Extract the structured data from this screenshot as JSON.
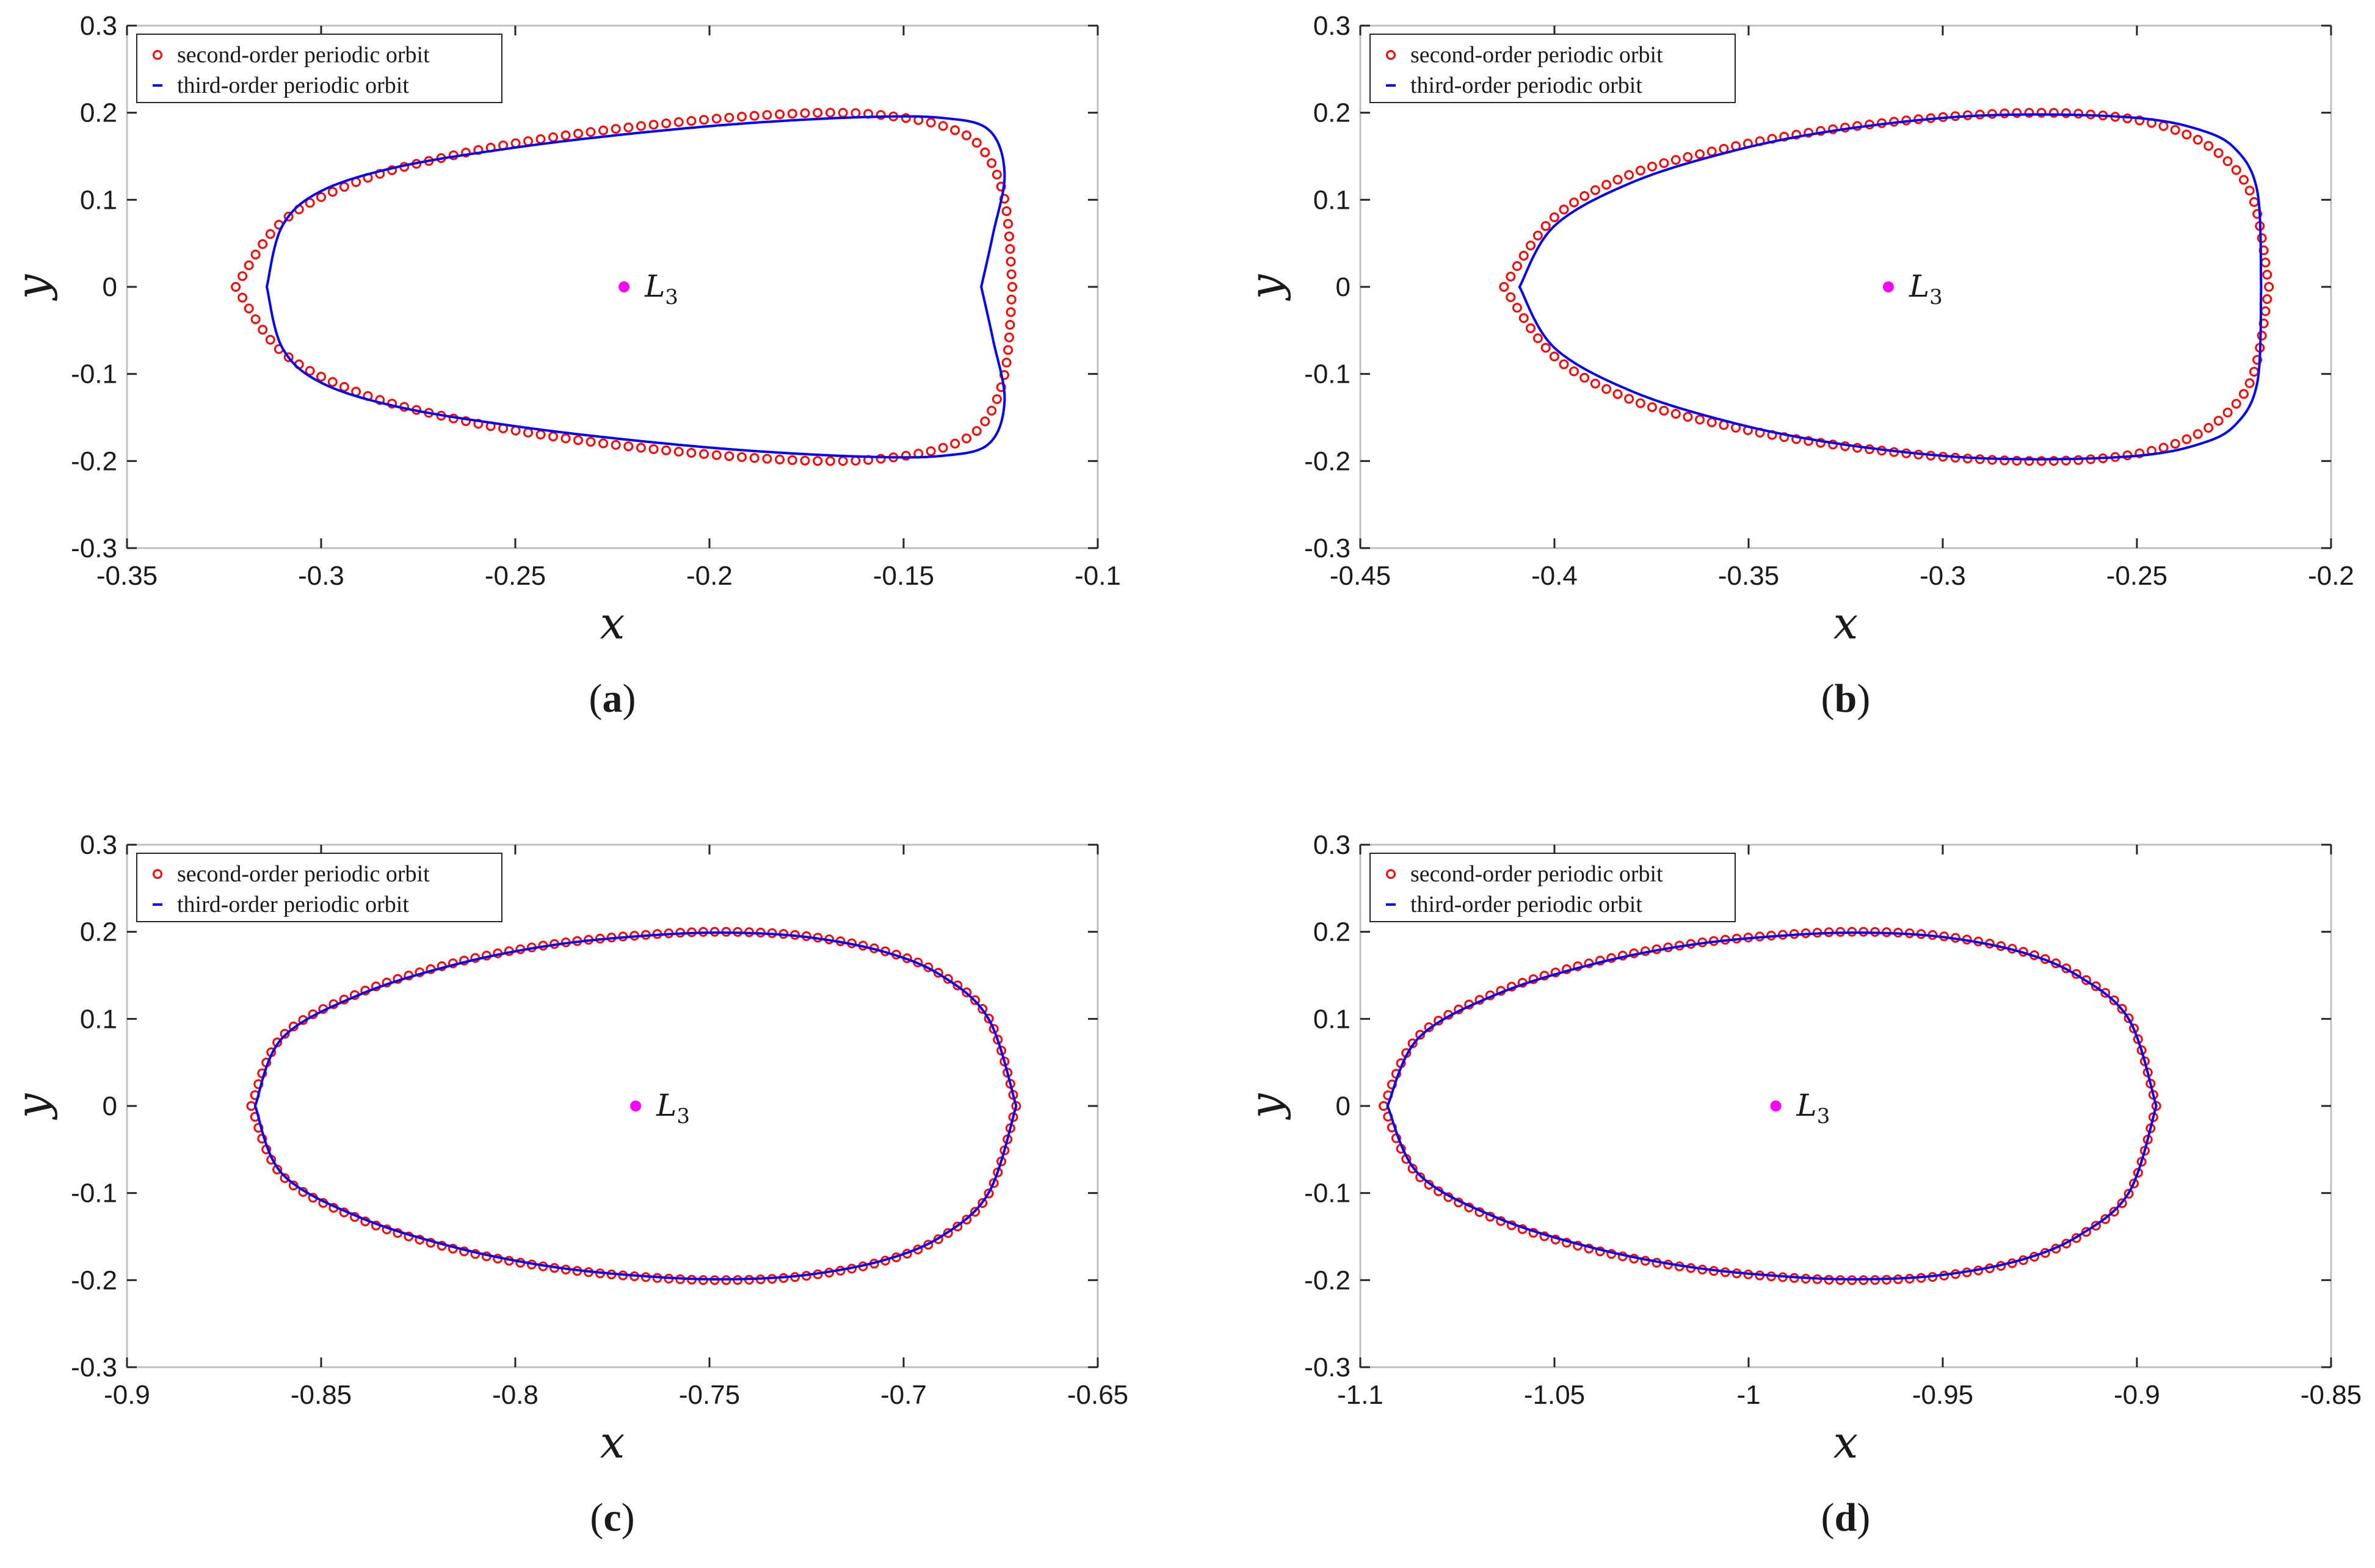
{
  "chart_data": [
    {
      "type": "scatter",
      "panel_label": "a",
      "xlabel": "x",
      "ylabel": "y",
      "xlim": [
        -0.35,
        -0.1
      ],
      "ylim": [
        -0.3,
        0.3
      ],
      "xticks": [
        "-0.35",
        "-0.3",
        "-0.25",
        "-0.2",
        "-0.15",
        "-0.1"
      ],
      "yticks": [
        "-0.3",
        "-0.2",
        "-0.1",
        "0",
        "0.1",
        "0.2",
        "0.3"
      ],
      "legend": {
        "position": "top-left",
        "entries": [
          "second-order periodic orbit",
          "third-order periodic orbit"
        ]
      },
      "point": {
        "label": "L",
        "subscript": "3",
        "x": -0.222,
        "y": 0.0
      },
      "series": [
        {
          "name": "second-order periodic orbit",
          "style": "circles",
          "color": "#ff0000",
          "count": 150,
          "x": [
            -0.322,
            -0.31,
            -0.29,
            -0.265,
            -0.24,
            -0.215,
            -0.19,
            -0.17,
            -0.155,
            -0.14,
            -0.13,
            -0.124,
            -0.122
          ],
          "y": [
            0.0,
            0.075,
            0.122,
            0.152,
            0.172,
            0.186,
            0.196,
            0.2,
            0.197,
            0.185,
            0.16,
            0.1,
            0.0
          ]
        },
        {
          "name": "third-order periodic orbit",
          "style": "line",
          "color": "#0000ff",
          "x": [
            -0.314,
            -0.31,
            -0.3,
            -0.28,
            -0.25,
            -0.22,
            -0.19,
            -0.16,
            -0.14,
            -0.128,
            -0.124,
            -0.127,
            -0.13
          ],
          "y": [
            0.0,
            0.07,
            0.11,
            0.138,
            0.16,
            0.176,
            0.188,
            0.195,
            0.194,
            0.18,
            0.13,
            0.06,
            0.0
          ]
        }
      ]
    },
    {
      "type": "scatter",
      "panel_label": "b",
      "xlabel": "x",
      "ylabel": "y",
      "xlim": [
        -0.45,
        -0.2
      ],
      "ylim": [
        -0.3,
        0.3
      ],
      "xticks": [
        "-0.45",
        "-0.4",
        "-0.35",
        "-0.3",
        "-0.25",
        "-0.2"
      ],
      "yticks": [
        "-0.3",
        "-0.2",
        "-0.1",
        "0",
        "0.1",
        "0.2",
        "0.3"
      ],
      "legend": {
        "position": "top-left",
        "entries": [
          "second-order periodic orbit",
          "third-order periodic orbit"
        ]
      },
      "point": {
        "label": "L",
        "subscript": "3",
        "x": -0.314,
        "y": 0.0
      },
      "series": [
        {
          "name": "second-order periodic orbit",
          "style": "circles",
          "color": "#ff0000",
          "count": 150,
          "x": [
            -0.413,
            -0.4,
            -0.38,
            -0.355,
            -0.33,
            -0.3,
            -0.275,
            -0.255,
            -0.24,
            -0.228,
            -0.22,
            -0.216
          ],
          "y": [
            0.0,
            0.08,
            0.13,
            0.16,
            0.18,
            0.195,
            0.2,
            0.195,
            0.18,
            0.15,
            0.1,
            0.0
          ]
        },
        {
          "name": "third-order periodic orbit",
          "style": "line",
          "color": "#0000ff",
          "x": [
            -0.409,
            -0.4,
            -0.38,
            -0.355,
            -0.33,
            -0.3,
            -0.275,
            -0.25,
            -0.235,
            -0.225,
            -0.219,
            -0.218
          ],
          "y": [
            0.0,
            0.07,
            0.12,
            0.155,
            0.178,
            0.194,
            0.198,
            0.194,
            0.182,
            0.16,
            0.11,
            0.0
          ]
        }
      ]
    },
    {
      "type": "scatter",
      "panel_label": "c",
      "xlabel": "x",
      "ylabel": "y",
      "xlim": [
        -0.9,
        -0.65
      ],
      "ylim": [
        -0.3,
        0.3
      ],
      "xticks": [
        "-0.9",
        "-0.85",
        "-0.8",
        "-0.75",
        "-0.7",
        "-0.65"
      ],
      "yticks": [
        "-0.3",
        "-0.2",
        "-0.1",
        "0",
        "0.1",
        "0.2",
        "0.3"
      ],
      "legend": {
        "position": "top-left",
        "entries": [
          "second-order periodic orbit",
          "third-order periodic orbit"
        ]
      },
      "point": {
        "label": "L",
        "subscript": "3",
        "x": -0.769,
        "y": 0.0
      },
      "series": [
        {
          "name": "second-order periodic orbit",
          "style": "circles",
          "color": "#ff0000",
          "count": 160,
          "x": [
            -0.868,
            -0.86,
            -0.84,
            -0.815,
            -0.79,
            -0.765,
            -0.745,
            -0.725,
            -0.705,
            -0.69,
            -0.678,
            -0.671
          ],
          "y": [
            0.0,
            0.08,
            0.13,
            0.165,
            0.186,
            0.197,
            0.2,
            0.195,
            0.178,
            0.15,
            0.1,
            0.0
          ]
        },
        {
          "name": "third-order periodic orbit",
          "style": "line",
          "color": "#0000ff",
          "x": [
            -0.867,
            -0.86,
            -0.84,
            -0.815,
            -0.79,
            -0.765,
            -0.745,
            -0.725,
            -0.705,
            -0.69,
            -0.678,
            -0.671
          ],
          "y": [
            0.0,
            0.078,
            0.128,
            0.163,
            0.185,
            0.196,
            0.199,
            0.194,
            0.177,
            0.149,
            0.099,
            0.0
          ]
        }
      ]
    },
    {
      "type": "scatter",
      "panel_label": "d",
      "xlabel": "x",
      "ylabel": "y",
      "xlim": [
        -1.1,
        -0.85
      ],
      "ylim": [
        -0.3,
        0.3
      ],
      "xticks": [
        "-1.1",
        "-1.05",
        "-1",
        "-0.95",
        "-0.9",
        "-0.85"
      ],
      "yticks": [
        "-0.3",
        "-0.2",
        "-0.1",
        "0",
        "0.1",
        "0.2",
        "0.3"
      ],
      "legend": {
        "position": "top-left",
        "entries": [
          "second-order periodic orbit",
          "third-order periodic orbit"
        ]
      },
      "point": {
        "label": "L",
        "subscript": "3",
        "x": -0.993,
        "y": 0.0
      },
      "series": [
        {
          "name": "second-order periodic orbit",
          "style": "circles",
          "color": "#ff0000",
          "count": 160,
          "x": [
            -1.094,
            -1.085,
            -1.065,
            -1.04,
            -1.015,
            -0.99,
            -0.97,
            -0.95,
            -0.93,
            -0.915,
            -0.902,
            -0.895
          ],
          "y": [
            0.0,
            0.08,
            0.13,
            0.165,
            0.186,
            0.197,
            0.2,
            0.195,
            0.178,
            0.15,
            0.1,
            0.0
          ]
        },
        {
          "name": "third-order periodic orbit",
          "style": "line",
          "color": "#0000ff",
          "x": [
            -1.093,
            -1.085,
            -1.065,
            -1.04,
            -1.015,
            -0.99,
            -0.97,
            -0.95,
            -0.93,
            -0.915,
            -0.902,
            -0.895
          ],
          "y": [
            0.0,
            0.078,
            0.128,
            0.163,
            0.185,
            0.196,
            0.199,
            0.194,
            0.177,
            0.149,
            0.099,
            0.0
          ]
        }
      ]
    }
  ],
  "colors": {
    "second_order": "#ff0000",
    "third_order": "#0000ff",
    "libration_point": "#ff00ff",
    "axes": "#262626",
    "grid_box": "#bfbfbf"
  }
}
